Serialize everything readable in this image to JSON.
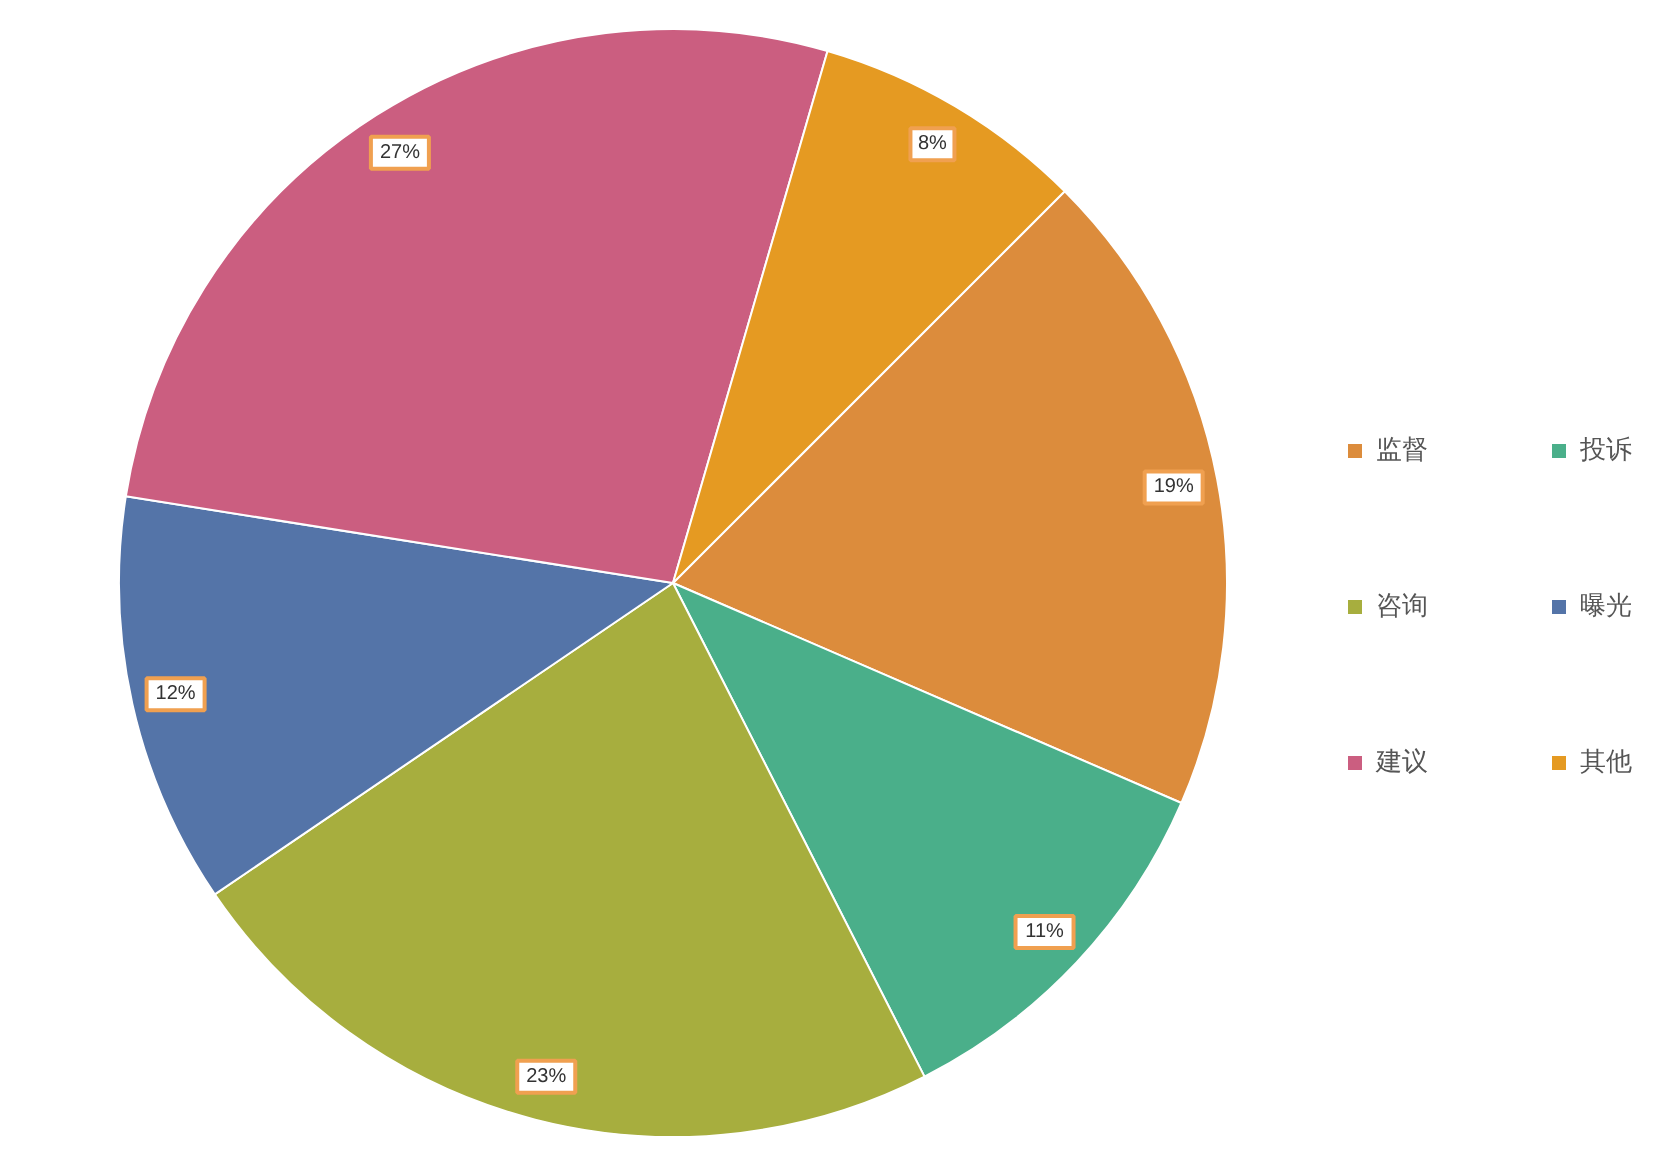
{
  "chart_data": {
    "type": "pie",
    "categories": [
      "监督",
      "投诉",
      "咨询",
      "曝光",
      "建议",
      "其他"
    ],
    "values": [
      19,
      11,
      23,
      12,
      27,
      8
    ],
    "colors": [
      "#dc8c3c",
      "#4aaf8a",
      "#a7ae3e",
      "#5474a8",
      "#cb5e80",
      "#e59a22"
    ],
    "value_labels": [
      "19%",
      "11%",
      "23%",
      "12%",
      "27%",
      "8%"
    ],
    "legend": "right"
  }
}
